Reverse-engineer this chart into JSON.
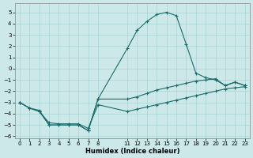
{
  "xlabel": "Humidex (Indice chaleur)",
  "xlim": [
    -0.5,
    23.5
  ],
  "ylim": [
    -6.2,
    5.8
  ],
  "yticks": [
    -6,
    -5,
    -4,
    -3,
    -2,
    -1,
    0,
    1,
    2,
    3,
    4,
    5
  ],
  "xticks": [
    0,
    1,
    2,
    3,
    4,
    5,
    6,
    7,
    8,
    11,
    12,
    13,
    14,
    15,
    16,
    17,
    18,
    19,
    20,
    21,
    22,
    23
  ],
  "bg_color": "#cce8e8",
  "grid_color": "#a8d4d4",
  "line_color": "#1a6b6a",
  "line1_x": [
    0,
    1,
    2,
    3,
    4,
    5,
    6,
    7,
    8,
    11,
    12,
    13,
    14,
    15,
    16,
    17,
    18,
    19,
    20,
    21,
    22,
    23
  ],
  "line1_y": [
    -3.0,
    -3.5,
    -3.7,
    -5.0,
    -5.0,
    -5.0,
    -5.0,
    -5.5,
    -2.7,
    -2.7,
    -2.5,
    -2.2,
    -1.9,
    -1.7,
    -1.5,
    -1.3,
    -1.1,
    -1.0,
    -0.9,
    -1.5,
    -1.2,
    -1.5
  ],
  "line2_x": [
    0,
    1,
    2,
    3,
    4,
    5,
    6,
    7,
    8,
    11,
    12,
    13,
    14,
    15,
    16,
    17,
    18,
    19,
    20,
    21,
    22,
    23
  ],
  "line2_y": [
    -3.0,
    -3.5,
    -3.8,
    -4.8,
    -4.9,
    -4.9,
    -4.9,
    -5.3,
    -3.2,
    -3.8,
    -3.6,
    -3.4,
    -3.2,
    -3.0,
    -2.8,
    -2.6,
    -2.4,
    -2.2,
    -2.0,
    -1.8,
    -1.7,
    -1.6
  ],
  "line3_x": [
    0,
    1,
    2,
    3,
    4,
    5,
    6,
    7,
    8,
    11,
    12,
    13,
    14,
    15,
    16,
    17,
    18,
    19,
    20,
    21,
    22,
    23
  ],
  "line3_y": [
    -3.0,
    -3.5,
    -3.8,
    -5.0,
    -5.0,
    -5.0,
    -5.0,
    -5.5,
    -2.7,
    1.8,
    3.4,
    4.2,
    4.8,
    5.0,
    4.7,
    2.2,
    -0.4,
    -0.8,
    -1.0,
    -1.5,
    -1.2,
    -1.5
  ]
}
